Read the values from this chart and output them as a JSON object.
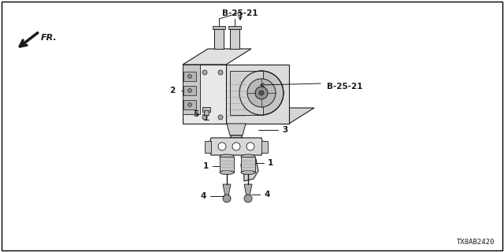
{
  "background_color": "#ffffff",
  "border_color": "#000000",
  "label_B2521_top": "B-25-21",
  "label_B2521_right": "B-25-21",
  "label_2": "2",
  "label_3": "3",
  "label_4_left": "4",
  "label_4_right": "4",
  "label_5": "5",
  "label_1_left": "1",
  "label_1_right": "1",
  "label_FR": "FR.",
  "label_code": "TX8AB2420",
  "line_color": "#1a1a1a",
  "text_color": "#1a1a1a",
  "font_size": 7.5,
  "code_font_size": 6.5
}
